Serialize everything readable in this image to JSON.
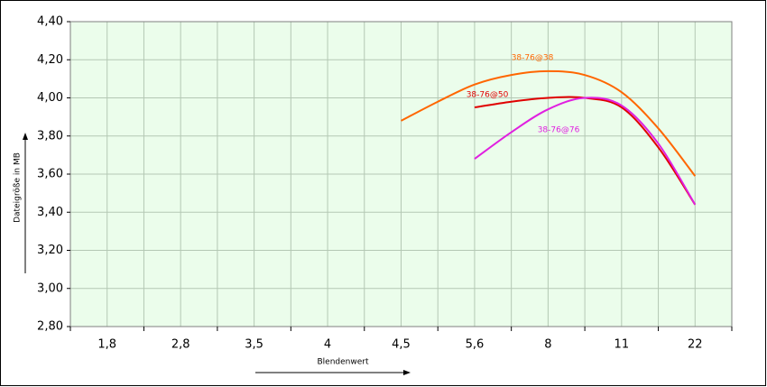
{
  "chart_data": {
    "type": "line",
    "x_label": "Blendenwert",
    "y_label": "Dateigröße in MB",
    "categories": [
      "1,8",
      null,
      "2,8",
      null,
      "3,5",
      null,
      "4",
      null,
      "4,5",
      null,
      "5,6",
      null,
      "8",
      null,
      "11",
      null,
      "22"
    ],
    "series": [
      {
        "name": "38-76@38",
        "color": "#ff6600",
        "values": [
          null,
          null,
          null,
          null,
          null,
          null,
          null,
          null,
          3.88,
          3.98,
          4.07,
          4.12,
          4.14,
          4.12,
          4.03,
          3.84,
          3.59
        ]
      },
      {
        "name": "38-76@50",
        "color": "#e00000",
        "values": [
          null,
          null,
          null,
          null,
          null,
          null,
          null,
          null,
          null,
          null,
          3.95,
          3.98,
          4.0,
          4.0,
          3.95,
          3.74,
          3.44
        ]
      },
      {
        "name": "38-76@76",
        "color": "#e020e0",
        "values": [
          null,
          null,
          null,
          null,
          null,
          null,
          null,
          null,
          null,
          null,
          3.68,
          3.82,
          3.94,
          4.0,
          3.96,
          3.76,
          3.44
        ]
      }
    ],
    "ylim": [
      2.8,
      4.4
    ],
    "yticks": [
      {
        "value": 2.8,
        "label": "2,80"
      },
      {
        "value": 3.0,
        "label": "3,00"
      },
      {
        "value": 3.2,
        "label": "3,20"
      },
      {
        "value": 3.4,
        "label": "3,40"
      },
      {
        "value": 3.6,
        "label": "3,60"
      },
      {
        "value": 3.8,
        "label": "3,80"
      },
      {
        "value": 4.0,
        "label": "4,00"
      },
      {
        "value": 4.2,
        "label": "4,20"
      },
      {
        "value": 4.4,
        "label": "4,40"
      }
    ],
    "grid": true
  }
}
